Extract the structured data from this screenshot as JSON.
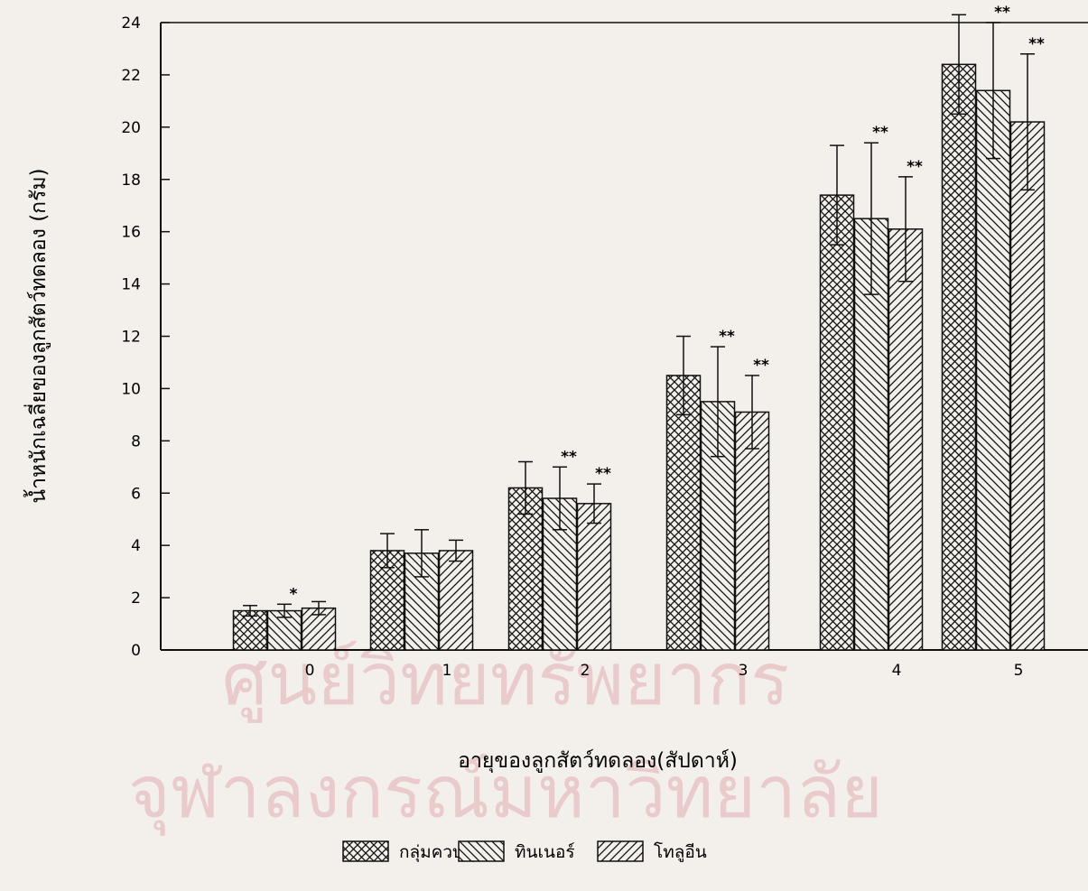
{
  "watermark": {
    "line1": "ศูนย์วิทยทรัพยากร",
    "line2": "จุฬาลงกรณ์มหาวิทยาลัย"
  },
  "chart_data": {
    "type": "bar",
    "title": "",
    "xlabel": "อายุของลูกสัตว์ทดลอง(สัปดาห์)",
    "ylabel": "น้ำหนักเฉลี่ยของลูกสัตว์ทดลอง (กรัม)",
    "ylim": [
      0,
      24
    ],
    "yticks": [
      0,
      2,
      4,
      6,
      8,
      10,
      12,
      14,
      16,
      18,
      20,
      22,
      24
    ],
    "categories": [
      "0",
      "1",
      "2",
      "3",
      "4",
      "5"
    ],
    "legend_position": "bottom",
    "grid": false,
    "series": [
      {
        "name": "กลุ่มควบคุม",
        "pattern": "crosshatch",
        "values": [
          1.5,
          3.8,
          6.2,
          10.5,
          17.4,
          22.4
        ],
        "error": [
          0.2,
          0.65,
          1.0,
          1.5,
          1.9,
          1.9
        ],
        "significance": [
          "",
          "",
          "",
          "",
          "",
          ""
        ]
      },
      {
        "name": "ทินเนอร์",
        "pattern": "diagonal-down",
        "values": [
          1.5,
          3.7,
          5.8,
          9.5,
          16.5,
          21.4
        ],
        "error": [
          0.25,
          0.9,
          1.2,
          2.1,
          2.9,
          2.6
        ],
        "significance": [
          "*",
          "",
          "**",
          "**",
          "**",
          "**"
        ]
      },
      {
        "name": "โทลูอีน",
        "pattern": "diagonal-up",
        "values": [
          1.6,
          3.8,
          5.6,
          9.1,
          16.1,
          20.2
        ],
        "error": [
          0.25,
          0.4,
          0.75,
          1.4,
          2.0,
          2.6
        ],
        "significance": [
          "",
          "",
          "**",
          "**",
          "**",
          "**"
        ]
      }
    ]
  }
}
